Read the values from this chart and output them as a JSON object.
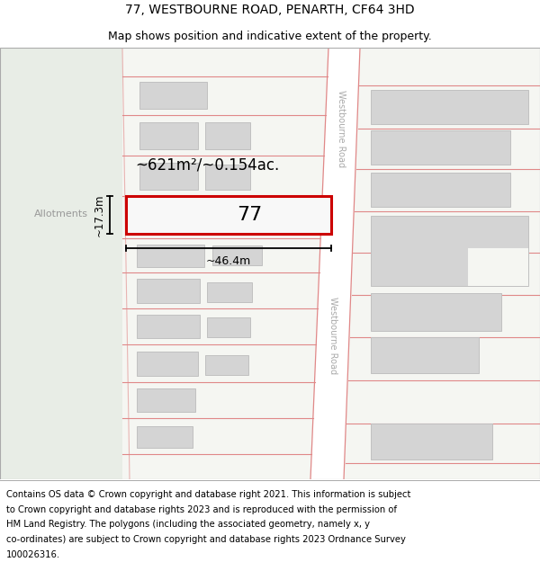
{
  "title_line1": "77, WESTBOURNE ROAD, PENARTH, CF64 3HD",
  "title_line2": "Map shows position and indicative extent of the property.",
  "footer_lines": [
    "Contains OS data © Crown copyright and database right 2021. This information is subject",
    "to Crown copyright and database rights 2023 and is reproduced with the permission of",
    "HM Land Registry. The polygons (including the associated geometry, namely x, y",
    "co-ordinates) are subject to Crown copyright and database rights 2023 Ordnance Survey",
    "100026316."
  ],
  "map_bg": "#f5f6f2",
  "allotment_bg": "#e8ede6",
  "road_color": "#ffffff",
  "building_fill": "#d4d4d4",
  "building_edge": "#c0c0c0",
  "road_line_color": "#e08888",
  "highlight_fill": "#f8f8f8",
  "highlight_stroke": "#cc0000",
  "area_label": "~621m²/~0.154ac.",
  "width_label": "~46.4m",
  "height_label": "~17.3m",
  "number_label": "77",
  "allotments_label": "Allotments",
  "road_label": "Westbourne Road",
  "title_fontsize": 10,
  "subtitle_fontsize": 9,
  "footer_fontsize": 7.2,
  "road_label_color": "#aaaaaa",
  "allotments_color": "#999999"
}
